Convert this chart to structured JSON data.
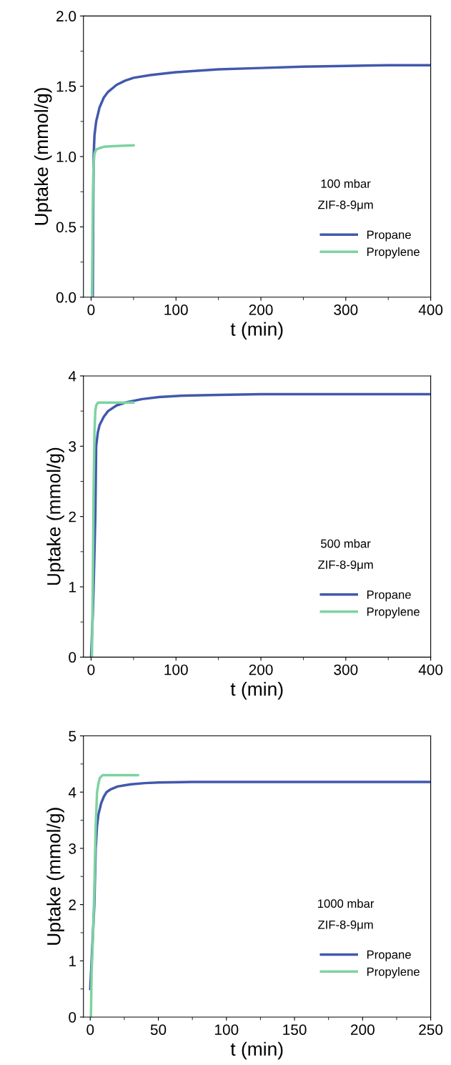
{
  "chart_data": [
    {
      "type": "line",
      "xlabel": "t (min)",
      "ylabel": "Uptake (mmol/g)",
      "xlim": [
        -9,
        400
      ],
      "ylim": [
        0,
        2.0
      ],
      "xticks": [
        0,
        100,
        200,
        300,
        400
      ],
      "yticks": [
        {
          "value": 0,
          "label": "0.0"
        },
        0.5,
        {
          "value": 1,
          "label": "1.0"
        },
        1.5,
        {
          "value": 2,
          "label": "2.0"
        }
      ],
      "legend": "bottom right",
      "grid": false,
      "annotations": [
        "100 mbar",
        "ZIF-8-9μm"
      ],
      "series": [
        {
          "name": "Propane",
          "color": "#4159ad",
          "x": [
            2,
            2.5,
            3,
            4,
            6,
            8,
            10,
            15,
            20,
            30,
            40,
            50,
            70,
            100,
            150,
            200,
            250,
            300,
            350,
            400
          ],
          "values": [
            0,
            0.6,
            1.0,
            1.15,
            1.25,
            1.3,
            1.35,
            1.42,
            1.46,
            1.51,
            1.54,
            1.56,
            1.58,
            1.6,
            1.62,
            1.63,
            1.64,
            1.645,
            1.65,
            1.65
          ]
        },
        {
          "name": "Propylene",
          "color": "#7dd3a1",
          "x": [
            1,
            1.5,
            2,
            2.5,
            3,
            4,
            6,
            10,
            15,
            30,
            50
          ],
          "values": [
            0,
            0.3,
            0.6,
            0.85,
            0.95,
            1.02,
            1.05,
            1.06,
            1.07,
            1.075,
            1.08
          ]
        }
      ]
    },
    {
      "type": "line",
      "xlabel": "t (min)",
      "ylabel": "Uptake (mmol/g)",
      "xlim": [
        -9,
        400
      ],
      "ylim": [
        0,
        4
      ],
      "xticks": [
        0,
        100,
        200,
        300,
        400
      ],
      "yticks": [
        0,
        1,
        2,
        3,
        4
      ],
      "legend": "bottom right",
      "grid": false,
      "annotations": [
        "500 mbar",
        "ZIF-8-9μm"
      ],
      "series": [
        {
          "name": "Propane",
          "color": "#4159ad",
          "x": [
            0,
            2,
            3,
            4,
            5,
            6,
            8,
            10,
            15,
            20,
            30,
            40,
            60,
            80,
            110,
            150,
            200,
            300,
            400
          ],
          "values": [
            0,
            0.6,
            1.0,
            1.5,
            2.0,
            3.0,
            3.2,
            3.3,
            3.42,
            3.5,
            3.58,
            3.62,
            3.67,
            3.7,
            3.72,
            3.73,
            3.74,
            3.74,
            3.74
          ]
        },
        {
          "name": "Propylene",
          "color": "#7dd3a1",
          "x": [
            1,
            2,
            3,
            4,
            5,
            6,
            8,
            15,
            30,
            50
          ],
          "values": [
            0,
            1.0,
            2.4,
            3.2,
            3.5,
            3.58,
            3.62,
            3.62,
            3.62,
            3.62
          ]
        }
      ]
    },
    {
      "type": "line",
      "xlabel": "t (min)",
      "ylabel": "Uptake (mmol/g)",
      "xlim": [
        -5,
        250
      ],
      "ylim": [
        0,
        5
      ],
      "xticks": [
        0,
        50,
        100,
        150,
        200,
        250
      ],
      "yticks": [
        0,
        1,
        2,
        3,
        4,
        5
      ],
      "legend": "bottom right",
      "grid": false,
      "annotations": [
        "1000 mbar",
        "ZIF-8-9μm"
      ],
      "series": [
        {
          "name": "Propane",
          "color": "#4159ad",
          "x": [
            0,
            2,
            3,
            4,
            5,
            6,
            8,
            10,
            12,
            15,
            20,
            25,
            30,
            40,
            50,
            75,
            100,
            150,
            200,
            250
          ],
          "values": [
            0.5,
            1.5,
            2.0,
            3.0,
            3.4,
            3.6,
            3.8,
            3.92,
            4.0,
            4.05,
            4.1,
            4.12,
            4.14,
            4.16,
            4.17,
            4.18,
            4.18,
            4.18,
            4.18,
            4.18
          ]
        },
        {
          "name": "Propylene",
          "color": "#7dd3a1",
          "x": [
            0.5,
            1,
            2,
            3,
            4,
            5,
            6,
            7,
            9,
            20,
            35
          ],
          "values": [
            0,
            0.8,
            1.4,
            2.3,
            3.4,
            4.0,
            4.15,
            4.25,
            4.3,
            4.3,
            4.3
          ]
        }
      ]
    }
  ]
}
